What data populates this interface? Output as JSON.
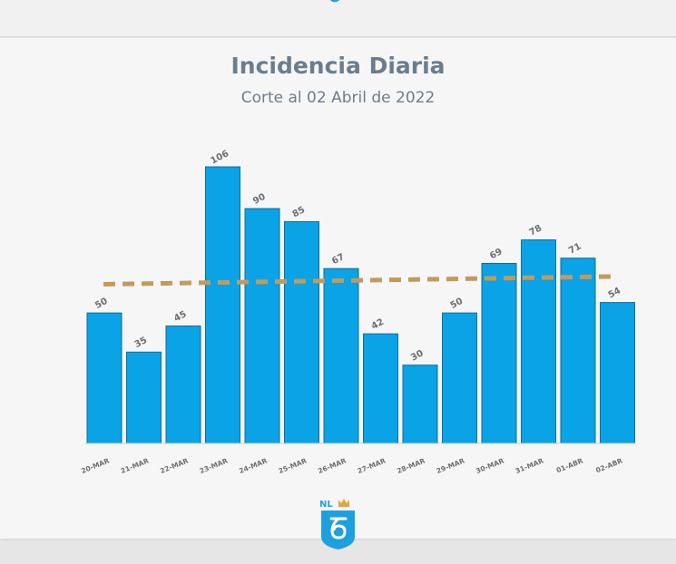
{
  "chart_data": {
    "type": "bar",
    "title": "Incidencia Diaria",
    "subtitle": "Corte al 02 Abril de 2022",
    "categories": [
      "20-MAR",
      "21-MAR",
      "22-MAR",
      "23-MAR",
      "24-MAR",
      "25-MAR",
      "26-MAR",
      "27-MAR",
      "28-MAR",
      "29-MAR",
      "30-MAR",
      "31-MAR",
      "01-ABR",
      "02-ABR"
    ],
    "values": [
      50,
      35,
      45,
      106,
      90,
      85,
      67,
      42,
      30,
      50,
      69,
      78,
      71,
      54
    ],
    "ylim": [
      0,
      106
    ],
    "trend_line": {
      "style": "dashed",
      "start": 61,
      "end": 64
    },
    "grid": false,
    "legend": "none",
    "colors": {
      "bar": "#0aa3e6",
      "bar_stroke": "#0a6e9c",
      "trend": "#c39a5a",
      "title": "#6a7d8e"
    }
  },
  "logo": {
    "name": "nl-shield-logo",
    "text": "NL"
  }
}
